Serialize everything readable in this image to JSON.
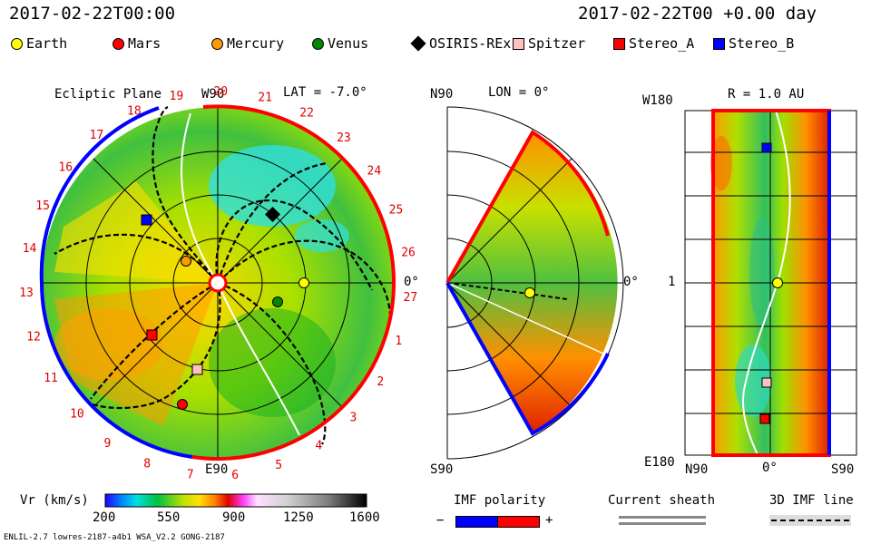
{
  "header": {
    "date_left": "2017-02-22T00:00",
    "date_right": "2017-02-22T00 +0.00 day"
  },
  "legend": [
    {
      "label": "Earth",
      "shape": "circle",
      "color": "#ffff00"
    },
    {
      "label": "Mars",
      "shape": "circle",
      "color": "#ff0000"
    },
    {
      "label": "Mercury",
      "shape": "circle",
      "color": "#ff9900"
    },
    {
      "label": "Venus",
      "shape": "circle",
      "color": "#008800"
    },
    {
      "label": "OSIRIS-REx",
      "shape": "diamond",
      "color": "#000000"
    },
    {
      "label": "Spitzer",
      "shape": "square",
      "color": "#ffc0c0"
    },
    {
      "label": "Stereo_A",
      "shape": "square",
      "color": "#ff0000"
    },
    {
      "label": "Stereo_B",
      "shape": "square",
      "color": "#0000ff"
    }
  ],
  "ecliptic": {
    "title": "Ecliptic Plane",
    "lat": "LAT = -7.0°",
    "top_label": "W90",
    "bottom_label": "E90",
    "right_label": "0°",
    "carrington": [
      "1",
      "2",
      "3",
      "4",
      "5",
      "6",
      "7",
      "8",
      "9",
      "10",
      "11",
      "12",
      "13",
      "14",
      "15",
      "16",
      "17",
      "18",
      "19",
      "20",
      "21",
      "22",
      "23",
      "24",
      "25",
      "26",
      "27"
    ]
  },
  "meridional": {
    "lon": "LON = 0°",
    "top_label": "N90",
    "bottom_label": "S90",
    "right_label": "0°"
  },
  "synoptic": {
    "title": "R = 1.0 AU",
    "top_left": "W180",
    "mid_left": "1",
    "bottom_left": "E180",
    "x_labels": [
      "N90",
      "0°",
      "S90"
    ]
  },
  "chart_data": [
    {
      "type": "heatmap",
      "title": "Ecliptic Plane",
      "bodies": [
        {
          "name": "Earth",
          "r_au": 1.0,
          "lon_deg": 0
        },
        {
          "name": "Venus",
          "r_au": 0.72,
          "lon_deg": -17
        },
        {
          "name": "Mercury",
          "r_au": 0.35,
          "lon_deg": 46
        },
        {
          "name": "Mars",
          "r_au": 1.4,
          "lon_deg": -113
        },
        {
          "name": "OSIRIS-REx",
          "r_au": 1.1,
          "lon_deg": 56
        },
        {
          "name": "Spitzer",
          "r_au": 1.0,
          "lon_deg": -103
        },
        {
          "name": "Stereo_A",
          "r_au": 1.0,
          "lon_deg": -128
        },
        {
          "name": "Stereo_B",
          "r_au": 1.0,
          "lon_deg": 153
        }
      ]
    },
    {
      "type": "heatmap",
      "colorbar": {
        "label": "Vr (km/s)",
        "ticks": [
          200,
          550,
          900,
          1250,
          1600
        ],
        "range": [
          200,
          1600
        ]
      }
    }
  ],
  "colorbar_labels": {
    "title": "Vr (km/s)",
    "ticks": [
      "200",
      "550",
      "900",
      "1250",
      "1600"
    ]
  },
  "imf": {
    "title": "IMF polarity",
    "minus": "−",
    "plus": "+",
    "neg_color": "#0000ff",
    "pos_color": "#ff0000"
  },
  "sheath": {
    "title": "Current sheath"
  },
  "imf3d": {
    "title": "3D IMF line"
  },
  "footer": {
    "left": "ENLIL-2.7 lowres-2187-a4b1 WSA_V2.2 GONG-2187"
  }
}
